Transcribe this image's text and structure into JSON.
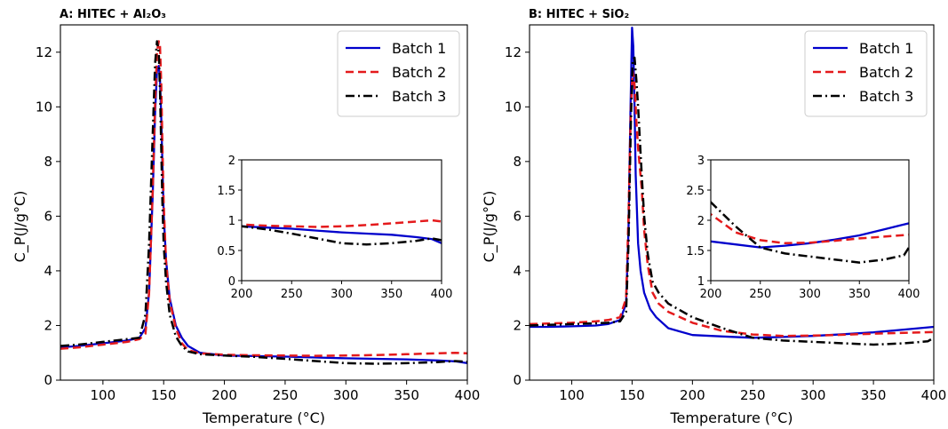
{
  "chart_data": [
    {
      "type": "line",
      "title": "A: HITEC + Al₂O₃",
      "xlabel": "Temperature (°C)",
      "ylabel": "C_P(J/g°C)",
      "xlim": [
        65,
        400
      ],
      "ylim": [
        0,
        13
      ],
      "xticks": [
        100,
        150,
        200,
        250,
        300,
        350,
        400
      ],
      "yticks": [
        0,
        2,
        4,
        6,
        8,
        10,
        12
      ],
      "legend_position": "top-right",
      "series": [
        {
          "name": "Batch 1",
          "color": "#0000cc",
          "style": "solid",
          "x": [
            65,
            80,
            100,
            120,
            130,
            135,
            138,
            141,
            143,
            144.5,
            146,
            147,
            148,
            149,
            150,
            152,
            155,
            160,
            165,
            170,
            180,
            200,
            225,
            250,
            275,
            300,
            325,
            350,
            375,
            390,
            400
          ],
          "y": [
            1.2,
            1.25,
            1.35,
            1.45,
            1.55,
            1.9,
            3.2,
            6.8,
            9.8,
            11.3,
            11.5,
            11.0,
            9.6,
            7.9,
            6.1,
            4.4,
            3.0,
            2.0,
            1.55,
            1.25,
            1.0,
            0.9,
            0.88,
            0.86,
            0.83,
            0.8,
            0.78,
            0.76,
            0.72,
            0.69,
            0.62
          ]
        },
        {
          "name": "Batch 2",
          "color": "#e41a1c",
          "style": "dashed",
          "x": [
            65,
            80,
            100,
            120,
            130,
            135,
            138,
            141,
            143,
            144.5,
            146,
            147,
            148,
            149,
            150,
            152,
            155,
            160,
            165,
            170,
            180,
            200,
            225,
            250,
            275,
            300,
            325,
            350,
            375,
            390,
            400
          ],
          "y": [
            1.15,
            1.2,
            1.3,
            1.4,
            1.5,
            1.7,
            3.2,
            7.0,
            10.2,
            12.0,
            12.4,
            12.2,
            10.8,
            8.6,
            6.5,
            4.3,
            2.9,
            1.9,
            1.35,
            1.1,
            0.98,
            0.93,
            0.91,
            0.9,
            0.89,
            0.9,
            0.92,
            0.95,
            0.98,
            1.0,
            0.98
          ]
        },
        {
          "name": "Batch 3",
          "color": "#000000",
          "style": "dashdot",
          "x": [
            65,
            80,
            100,
            120,
            130,
            135,
            138,
            141,
            143,
            144.5,
            146,
            147,
            148,
            149,
            150,
            152,
            155,
            160,
            165,
            170,
            180,
            200,
            225,
            250,
            275,
            300,
            325,
            350,
            375,
            390,
            400
          ],
          "y": [
            1.25,
            1.3,
            1.4,
            1.5,
            1.55,
            2.4,
            5.0,
            9.0,
            11.6,
            12.4,
            12.0,
            10.6,
            8.5,
            6.5,
            5.0,
            3.6,
            2.4,
            1.6,
            1.25,
            1.05,
            0.95,
            0.9,
            0.85,
            0.78,
            0.7,
            0.62,
            0.6,
            0.62,
            0.66,
            0.7,
            0.67
          ]
        }
      ],
      "inset": {
        "xlim": [
          200,
          400
        ],
        "ylim": [
          0,
          2
        ],
        "xticks": [
          200,
          250,
          300,
          350,
          400
        ],
        "yticks": [
          0,
          0.5,
          1,
          1.5,
          2
        ],
        "ytick_labels": [
          "0",
          "0.5",
          "1",
          "1.5",
          "2"
        ]
      }
    },
    {
      "type": "line",
      "title": "B: HITEC + SiO₂",
      "xlabel": "Temperature (°C)",
      "ylabel": "C_P(J/g°C)",
      "xlim": [
        65,
        400
      ],
      "ylim": [
        0,
        13
      ],
      "xticks": [
        100,
        150,
        200,
        250,
        300,
        350,
        400
      ],
      "yticks": [
        0,
        2,
        4,
        6,
        8,
        10,
        12
      ],
      "legend_position": "top-right",
      "series": [
        {
          "name": "Batch 1",
          "color": "#0000cc",
          "style": "solid",
          "x": [
            65,
            80,
            100,
            120,
            130,
            140,
            145,
            147,
            148.5,
            150,
            151,
            152,
            153,
            155,
            157,
            160,
            165,
            170,
            180,
            200,
            225,
            250,
            275,
            300,
            325,
            350,
            375,
            400
          ],
          "y": [
            1.95,
            1.95,
            1.97,
            2.0,
            2.05,
            2.2,
            2.8,
            5.5,
            9.5,
            12.9,
            12.2,
            10.0,
            7.5,
            5.0,
            4.0,
            3.2,
            2.6,
            2.3,
            1.9,
            1.65,
            1.6,
            1.55,
            1.58,
            1.62,
            1.68,
            1.75,
            1.85,
            1.95
          ]
        },
        {
          "name": "Batch 2",
          "color": "#e41a1c",
          "style": "dashed",
          "x": [
            65,
            80,
            100,
            120,
            130,
            140,
            145,
            147,
            149,
            150.5,
            152,
            153.5,
            155,
            158,
            160,
            163,
            167,
            172,
            180,
            200,
            225,
            250,
            275,
            300,
            325,
            350,
            375,
            400
          ],
          "y": [
            2.05,
            2.07,
            2.1,
            2.15,
            2.2,
            2.3,
            3.0,
            6.0,
            10.0,
            11.3,
            10.8,
            9.5,
            8.5,
            7.0,
            5.5,
            4.2,
            3.2,
            2.8,
            2.5,
            2.1,
            1.8,
            1.67,
            1.62,
            1.63,
            1.66,
            1.7,
            1.73,
            1.76
          ]
        },
        {
          "name": "Batch 3",
          "color": "#000000",
          "style": "dashdot",
          "x": [
            65,
            80,
            100,
            120,
            130,
            140,
            145,
            147,
            149,
            150.5,
            152,
            153.5,
            155,
            158,
            160,
            163,
            167,
            172,
            180,
            200,
            225,
            250,
            275,
            300,
            325,
            350,
            375,
            395,
            400
          ],
          "y": [
            2.0,
            2.02,
            2.05,
            2.08,
            2.1,
            2.15,
            2.5,
            5.0,
            9.5,
            11.7,
            11.8,
            11.0,
            10.0,
            7.5,
            6.0,
            4.6,
            3.6,
            3.2,
            2.8,
            2.3,
            1.9,
            1.55,
            1.45,
            1.4,
            1.35,
            1.3,
            1.35,
            1.42,
            1.55
          ]
        }
      ],
      "inset": {
        "xlim": [
          200,
          400
        ],
        "ylim": [
          1,
          3
        ],
        "xticks": [
          200,
          250,
          300,
          350,
          400
        ],
        "yticks": [
          1,
          1.5,
          2,
          2.5,
          3
        ],
        "ytick_labels": [
          "1",
          "1.5",
          "2",
          "2.5",
          "3"
        ]
      }
    }
  ]
}
